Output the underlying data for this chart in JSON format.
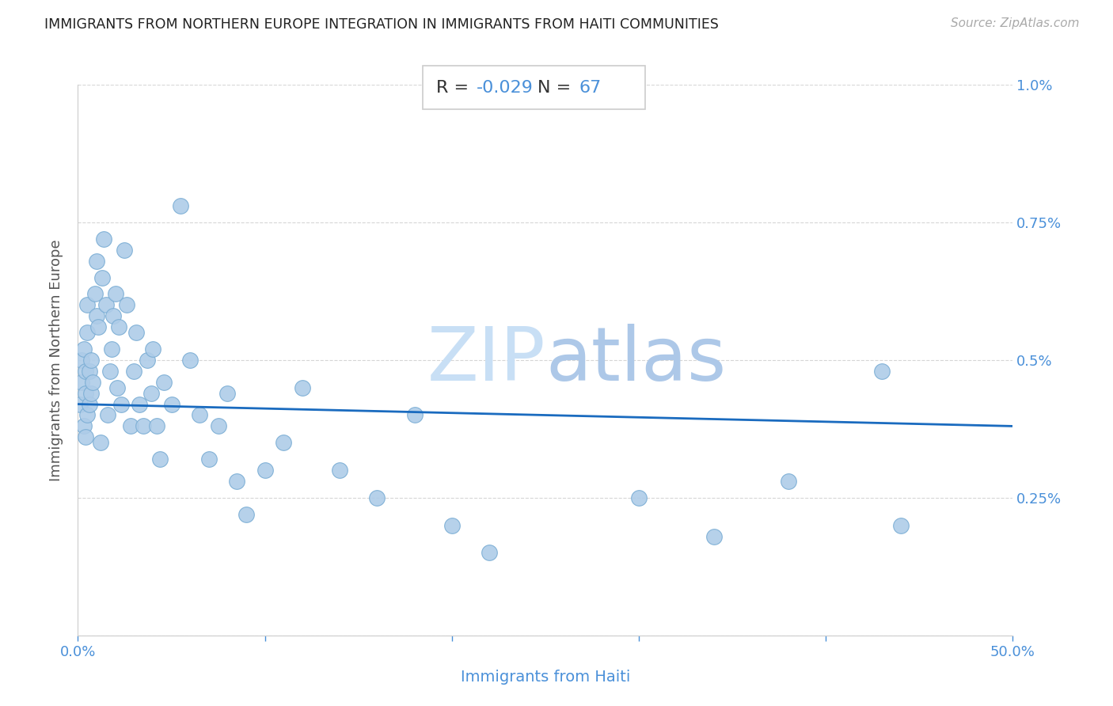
{
  "title": "IMMIGRANTS FROM NORTHERN EUROPE INTEGRATION IN IMMIGRANTS FROM HAITI COMMUNITIES",
  "source": "Source: ZipAtlas.com",
  "xlabel": "Immigrants from Haiti",
  "ylabel": "Immigrants from Northern Europe",
  "R_text": "-0.029",
  "N_text": "67",
  "xlim": [
    0.0,
    0.5
  ],
  "ylim": [
    0.0,
    0.01
  ],
  "xtick_positions": [
    0.0,
    0.1,
    0.2,
    0.3,
    0.4,
    0.5
  ],
  "xticklabels": [
    "0.0%",
    "",
    "",
    "",
    "",
    "50.0%"
  ],
  "ytick_positions": [
    0.0,
    0.0025,
    0.005,
    0.0075,
    0.01
  ],
  "yticklabels": [
    "",
    "0.25%",
    "0.5%",
    "0.75%",
    "1.0%"
  ],
  "scatter_color": "#aecce8",
  "scatter_edge_color": "#7aadd4",
  "line_color": "#1a6bbf",
  "title_color": "#222222",
  "source_color": "#aaaaaa",
  "xlabel_color": "#4a90d9",
  "ylabel_color": "#555555",
  "tick_color": "#4a90d9",
  "watermark_zip_color": "#c8dff5",
  "watermark_atlas_color": "#adc8e8",
  "grid_color": "#cccccc",
  "box_edge_color": "#cccccc",
  "scatter_x": [
    0.001,
    0.002,
    0.002,
    0.003,
    0.003,
    0.004,
    0.004,
    0.004,
    0.005,
    0.005,
    0.005,
    0.006,
    0.006,
    0.007,
    0.007,
    0.008,
    0.009,
    0.01,
    0.01,
    0.011,
    0.012,
    0.013,
    0.014,
    0.015,
    0.016,
    0.017,
    0.018,
    0.019,
    0.02,
    0.021,
    0.022,
    0.023,
    0.025,
    0.026,
    0.028,
    0.03,
    0.031,
    0.033,
    0.035,
    0.037,
    0.039,
    0.04,
    0.042,
    0.044,
    0.046,
    0.05,
    0.055,
    0.06,
    0.065,
    0.07,
    0.075,
    0.08,
    0.085,
    0.09,
    0.1,
    0.11,
    0.12,
    0.14,
    0.16,
    0.18,
    0.2,
    0.22,
    0.3,
    0.34,
    0.38,
    0.43,
    0.44
  ],
  "scatter_y": [
    0.0042,
    0.0046,
    0.005,
    0.0038,
    0.0052,
    0.0044,
    0.0048,
    0.0036,
    0.004,
    0.0055,
    0.006,
    0.0042,
    0.0048,
    0.0044,
    0.005,
    0.0046,
    0.0062,
    0.0058,
    0.0068,
    0.0056,
    0.0035,
    0.0065,
    0.0072,
    0.006,
    0.004,
    0.0048,
    0.0052,
    0.0058,
    0.0062,
    0.0045,
    0.0056,
    0.0042,
    0.007,
    0.006,
    0.0038,
    0.0048,
    0.0055,
    0.0042,
    0.0038,
    0.005,
    0.0044,
    0.0052,
    0.0038,
    0.0032,
    0.0046,
    0.0042,
    0.0078,
    0.005,
    0.004,
    0.0032,
    0.0038,
    0.0044,
    0.0028,
    0.0022,
    0.003,
    0.0035,
    0.0045,
    0.003,
    0.0025,
    0.004,
    0.002,
    0.0015,
    0.0025,
    0.0018,
    0.0028,
    0.0048,
    0.002
  ]
}
